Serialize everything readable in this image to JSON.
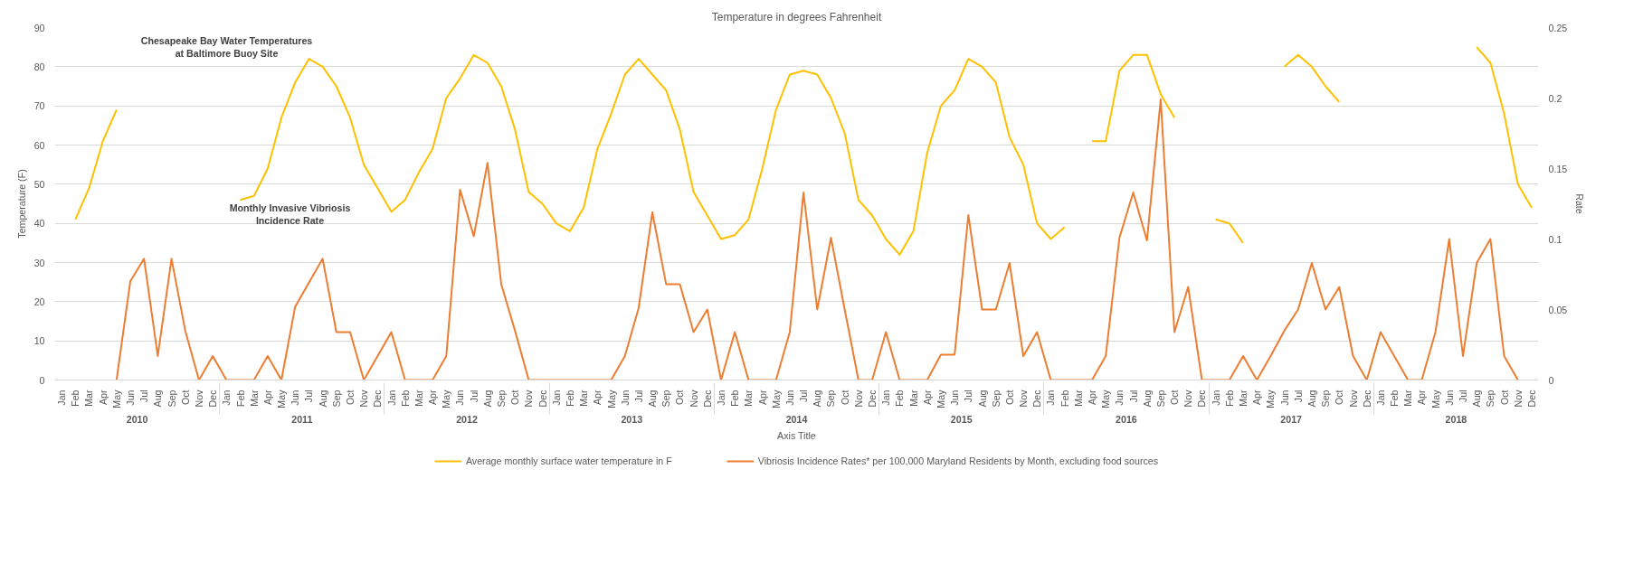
{
  "chart_data": {
    "type": "line",
    "title": "Temperature in degrees Fahrenheit",
    "xlabel": "Axis Title",
    "ylabel": "Temperature (F)",
    "y2label": "Rate",
    "annotations": [
      "Chesapeake Bay Water Temperatures\nat Baltimore Buoy Site",
      "Monthly Invasive Vibriosis\nIncidence Rate",
      "2010",
      "2011",
      "2012",
      "2013",
      "2014",
      "2015",
      "2016",
      "2017",
      "2018"
    ],
    "categories": [
      "Jan",
      "Feb",
      "Mar",
      "Apr",
      "May",
      "Jun",
      "Jul",
      "Aug",
      "Sep",
      "Oct",
      "Nov",
      "Dec",
      "Jan",
      "Feb",
      "Mar",
      "Apr",
      "May",
      "Jun",
      "Jul",
      "Aug",
      "Sep",
      "Oct",
      "Nov",
      "Dec",
      "Jan",
      "Feb",
      "Mar",
      "Apr",
      "May",
      "Jun",
      "Jul",
      "Aug",
      "Sep",
      "Oct",
      "Nov",
      "Dec",
      "Jan",
      "Feb",
      "Mar",
      "Apr",
      "May",
      "Jun",
      "Jul",
      "Aug",
      "Sep",
      "Oct",
      "Nov",
      "Dec",
      "Jan",
      "Feb",
      "Mar",
      "Apr",
      "May",
      "Jun",
      "Jul",
      "Aug",
      "Sep",
      "Oct",
      "Nov",
      "Dec",
      "Jan",
      "Feb",
      "Mar",
      "Apr",
      "May",
      "Jun",
      "Jul",
      "Aug",
      "Sep",
      "Oct",
      "Nov",
      "Dec",
      "Jan",
      "Feb",
      "Mar",
      "Apr",
      "May",
      "Jun",
      "Jul",
      "Aug",
      "Sep",
      "Oct",
      "Nov",
      "Dec",
      "Jan",
      "Feb",
      "Mar",
      "Apr",
      "May",
      "Jun",
      "Jul",
      "Aug",
      "Sep",
      "Oct",
      "Nov",
      "Dec",
      "Jan",
      "Feb",
      "Mar",
      "Apr",
      "May",
      "Jun",
      "Jul",
      "Aug",
      "Sep",
      "Oct",
      "Nov",
      "Dec"
    ],
    "series": [
      {
        "name": "Average monthly surface water temperature in F",
        "color": "#ffc000",
        "values": [
          null,
          41,
          49,
          61,
          69,
          null,
          null,
          null,
          null,
          null,
          null,
          null,
          null,
          46,
          47,
          54,
          67,
          76,
          82,
          80,
          75,
          67,
          55,
          49,
          43,
          46,
          53,
          59,
          72,
          77,
          83,
          81,
          75,
          64,
          48,
          45,
          40,
          38,
          44,
          59,
          68,
          78,
          82,
          78,
          74,
          64,
          48,
          42,
          36,
          37,
          41,
          54,
          69,
          78,
          79,
          78,
          72,
          63,
          46,
          42,
          36,
          32,
          38,
          58,
          70,
          74,
          82,
          80,
          76,
          62,
          55,
          40,
          36,
          39,
          null,
          61,
          61,
          79,
          83,
          83,
          73,
          67,
          null,
          null,
          41,
          40,
          35,
          null,
          null,
          80,
          83,
          80,
          75,
          71,
          null,
          null,
          null,
          null,
          null,
          null,
          null,
          null,
          null,
          85,
          81,
          68,
          50,
          44
        ]
      },
      {
        "name": "Vibriosis Incidence Rates* per 100,000 Maryland Residents by Month, excluding food sources",
        "color": "#ed7d31",
        "axis": "y2",
        "values": [
          null,
          null,
          null,
          null,
          0,
          0.07,
          0.086,
          0.017,
          0.086,
          0.035,
          0,
          0.017,
          0,
          0,
          0,
          0.017,
          0,
          0.052,
          0.069,
          0.086,
          0.034,
          0.034,
          0,
          0.017,
          0.034,
          0,
          0,
          0,
          0.017,
          0.135,
          0.102,
          0.154,
          0.068,
          0.035,
          0,
          0,
          0,
          0,
          0,
          0,
          0,
          0.017,
          0.051,
          0.119,
          0.068,
          0.068,
          0.034,
          0.05,
          0,
          0.034,
          0,
          0,
          0,
          0.034,
          0.133,
          0.05,
          0.101,
          0.05,
          0,
          0,
          0.034,
          0,
          0,
          0,
          0.018,
          0.018,
          0.117,
          0.05,
          0.05,
          0.083,
          0.017,
          0.034,
          0,
          0,
          0,
          0,
          0.017,
          0.101,
          0.133,
          0.099,
          0.199,
          0.034,
          0.066,
          0,
          0,
          0,
          0.017,
          0,
          0.017,
          0.035,
          0.05,
          0.083,
          0.05,
          0.066,
          0.017,
          0,
          0.034,
          0.017,
          0,
          0,
          0.034,
          0.1,
          0.017,
          0.083,
          0.1,
          0.017,
          0,
          null
        ]
      }
    ],
    "ylim": [
      0,
      90
    ],
    "yticks": [
      0,
      10,
      20,
      30,
      40,
      50,
      60,
      70,
      80,
      90
    ],
    "y2lim": [
      0,
      0.25
    ],
    "y2ticks": [
      0,
      0.05,
      0.1,
      0.15,
      0.2,
      0.25
    ],
    "grid": "y",
    "legend": "bottom",
    "marker": "none",
    "line_style": "solid"
  }
}
